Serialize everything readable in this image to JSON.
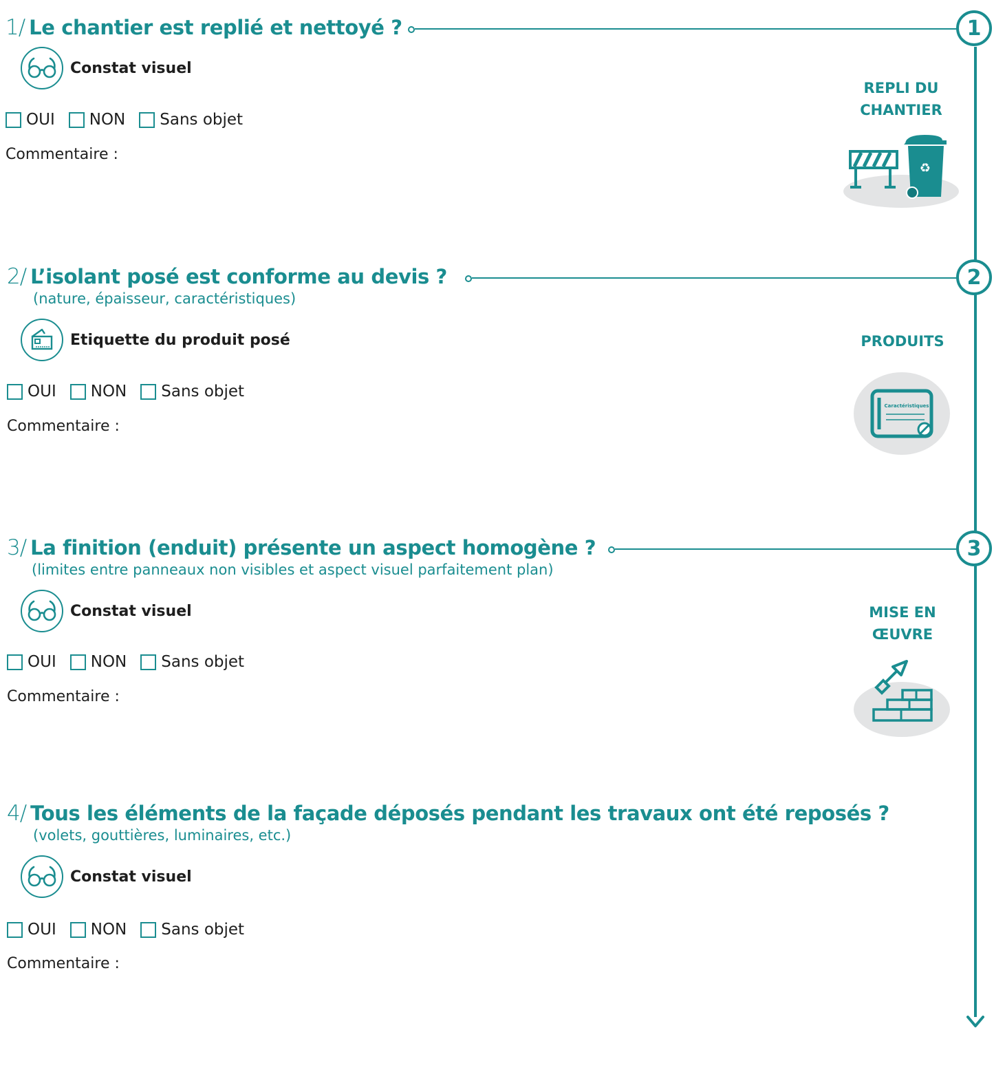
{
  "sections": [
    {
      "number": "1/",
      "question": "Le chantier est replié et nettoyé ?",
      "subtitle": "",
      "method": "Constat visuel",
      "method_icon": "glasses-icon",
      "options": [
        "OUI",
        "NON",
        "Sans objet"
      ],
      "comment_label": "Commentaire :",
      "step": "1",
      "side_label_lines": [
        "REPLI DU",
        "CHANTIER"
      ],
      "side_icon": "barrier-and-recycling-bin-icon"
    },
    {
      "number": "2/",
      "question": "L’isolant posé est conforme au devis ?",
      "subtitle": "(nature, épaisseur, caractéristiques)",
      "method": "Etiquette du produit posé",
      "method_icon": "product-label-icon",
      "options": [
        "OUI",
        "NON",
        "Sans objet"
      ],
      "comment_label": "Commentaire :",
      "step": "2",
      "side_label_lines": [
        "PRODUITS"
      ],
      "side_icon": "specification-sheet-icon",
      "side_icon_text": "Caractéristiques"
    },
    {
      "number": "3/",
      "question": "La finition (enduit) présente un aspect homogène ?",
      "subtitle": "(limites entre panneaux non visibles et aspect visuel parfaitement plan)",
      "method": "Constat visuel",
      "method_icon": "glasses-icon",
      "options": [
        "OUI",
        "NON",
        "Sans objet"
      ],
      "comment_label": "Commentaire :",
      "step": "3",
      "side_label_lines": [
        "MISE EN",
        "ŒUVRE"
      ],
      "side_icon": "trowel-and-bricks-icon"
    },
    {
      "number": "4/",
      "question": "Tous les éléments de la façade déposés pendant les travaux ont été reposés ?",
      "subtitle": "(volets, gouttières, luminaires, etc.)",
      "method": "Constat visuel",
      "method_icon": "glasses-icon",
      "options": [
        "OUI",
        "NON",
        "Sans objet"
      ],
      "comment_label": "Commentaire :"
    }
  ],
  "colors": {
    "accent": "#1a8d90",
    "text": "#1e1e1e",
    "illustration_bg": "#e3e4e5"
  }
}
